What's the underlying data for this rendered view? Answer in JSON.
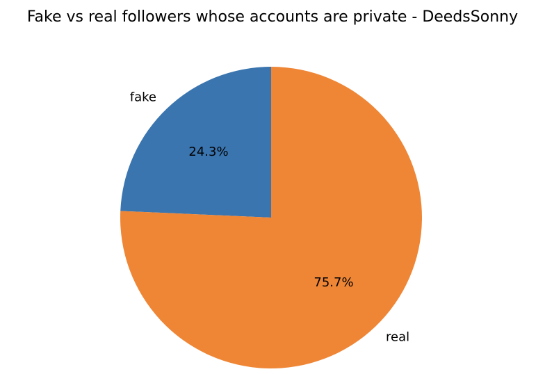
{
  "chart_data": {
    "type": "pie",
    "title": "Fake vs real followers whose accounts are private - DeedsSonny",
    "slices": [
      {
        "label": "fake",
        "value": 24.3,
        "pct_label": "24.3%",
        "color": "#3a75af"
      },
      {
        "label": "real",
        "value": 75.7,
        "pct_label": "75.7%",
        "color": "#ef8636"
      }
    ],
    "start_angle_deg": 90,
    "direction": "counterclockwise",
    "legend": "none",
    "grid": false
  }
}
